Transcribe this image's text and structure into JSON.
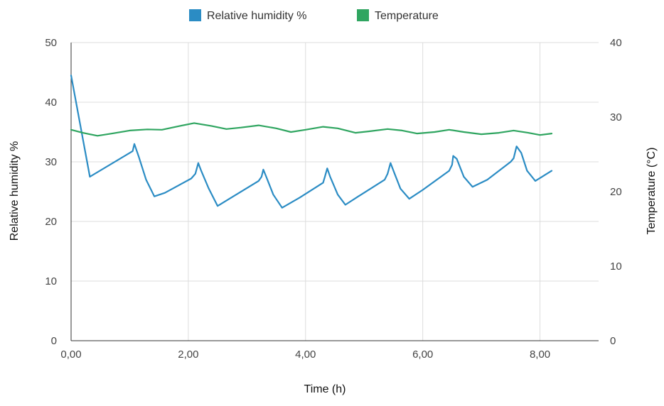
{
  "chart_data": {
    "type": "line",
    "title": "",
    "xlabel": "Time (h)",
    "ylabel": "Relative humidity %",
    "y2label": "Temperature (°C)",
    "xlim": [
      0,
      9
    ],
    "ylim": [
      0,
      50
    ],
    "y2lim": [
      0,
      40
    ],
    "x_ticks": [
      "0,00",
      "2,00",
      "4,00",
      "6,00",
      "8,00"
    ],
    "x_tick_values": [
      0,
      2,
      4,
      6,
      8
    ],
    "y_ticks": [
      "0",
      "10",
      "20",
      "30",
      "40",
      "50"
    ],
    "y_tick_values": [
      0,
      10,
      20,
      30,
      40,
      50
    ],
    "y2_ticks": [
      "0",
      "10",
      "20",
      "30",
      "40"
    ],
    "y2_tick_values": [
      0,
      10,
      20,
      30,
      40
    ],
    "grid": true,
    "legend_position": "top-center",
    "series": [
      {
        "name": "Relative humidity %",
        "axis": "left",
        "color": "#2b8cc4",
        "points": [
          [
            0.0,
            44.5
          ],
          [
            0.32,
            27.5
          ],
          [
            1.05,
            31.8
          ],
          [
            1.08,
            33.0
          ],
          [
            1.15,
            31.0
          ],
          [
            1.28,
            27.0
          ],
          [
            1.42,
            24.2
          ],
          [
            1.6,
            24.8
          ],
          [
            2.05,
            27.2
          ],
          [
            2.12,
            28.0
          ],
          [
            2.17,
            29.8
          ],
          [
            2.22,
            28.5
          ],
          [
            2.35,
            25.5
          ],
          [
            2.5,
            22.6
          ],
          [
            2.7,
            23.8
          ],
          [
            3.2,
            26.8
          ],
          [
            3.25,
            27.5
          ],
          [
            3.28,
            28.7
          ],
          [
            3.33,
            27.5
          ],
          [
            3.45,
            24.5
          ],
          [
            3.6,
            22.3
          ],
          [
            3.9,
            24.0
          ],
          [
            4.3,
            26.5
          ],
          [
            4.33,
            27.5
          ],
          [
            4.37,
            28.9
          ],
          [
            4.42,
            27.5
          ],
          [
            4.55,
            24.5
          ],
          [
            4.68,
            22.8
          ],
          [
            4.9,
            24.2
          ],
          [
            5.35,
            27.0
          ],
          [
            5.4,
            28.0
          ],
          [
            5.45,
            29.8
          ],
          [
            5.52,
            28.0
          ],
          [
            5.62,
            25.5
          ],
          [
            5.77,
            23.8
          ],
          [
            6.0,
            25.3
          ],
          [
            6.45,
            28.5
          ],
          [
            6.5,
            29.5
          ],
          [
            6.52,
            31.0
          ],
          [
            6.58,
            30.5
          ],
          [
            6.7,
            27.5
          ],
          [
            6.85,
            25.8
          ],
          [
            7.1,
            27.0
          ],
          [
            7.5,
            30.0
          ],
          [
            7.55,
            30.6
          ],
          [
            7.6,
            32.6
          ],
          [
            7.68,
            31.5
          ],
          [
            7.78,
            28.5
          ],
          [
            7.92,
            26.8
          ],
          [
            8.2,
            28.5
          ]
        ]
      },
      {
        "name": "Temperature",
        "axis": "right",
        "color": "#2fa560",
        "points": [
          [
            0.0,
            28.3
          ],
          [
            0.2,
            27.9
          ],
          [
            0.45,
            27.5
          ],
          [
            0.7,
            27.8
          ],
          [
            1.0,
            28.2
          ],
          [
            1.3,
            28.35
          ],
          [
            1.55,
            28.3
          ],
          [
            1.85,
            28.8
          ],
          [
            2.1,
            29.2
          ],
          [
            2.4,
            28.8
          ],
          [
            2.65,
            28.4
          ],
          [
            2.9,
            28.6
          ],
          [
            3.2,
            28.9
          ],
          [
            3.5,
            28.5
          ],
          [
            3.75,
            28.0
          ],
          [
            4.0,
            28.3
          ],
          [
            4.3,
            28.7
          ],
          [
            4.55,
            28.5
          ],
          [
            4.85,
            27.9
          ],
          [
            5.1,
            28.1
          ],
          [
            5.4,
            28.4
          ],
          [
            5.65,
            28.2
          ],
          [
            5.9,
            27.8
          ],
          [
            6.2,
            28.0
          ],
          [
            6.45,
            28.3
          ],
          [
            6.7,
            28.0
          ],
          [
            7.0,
            27.7
          ],
          [
            7.3,
            27.9
          ],
          [
            7.55,
            28.2
          ],
          [
            7.8,
            27.9
          ],
          [
            8.0,
            27.6
          ],
          [
            8.2,
            27.8
          ]
        ]
      }
    ]
  }
}
